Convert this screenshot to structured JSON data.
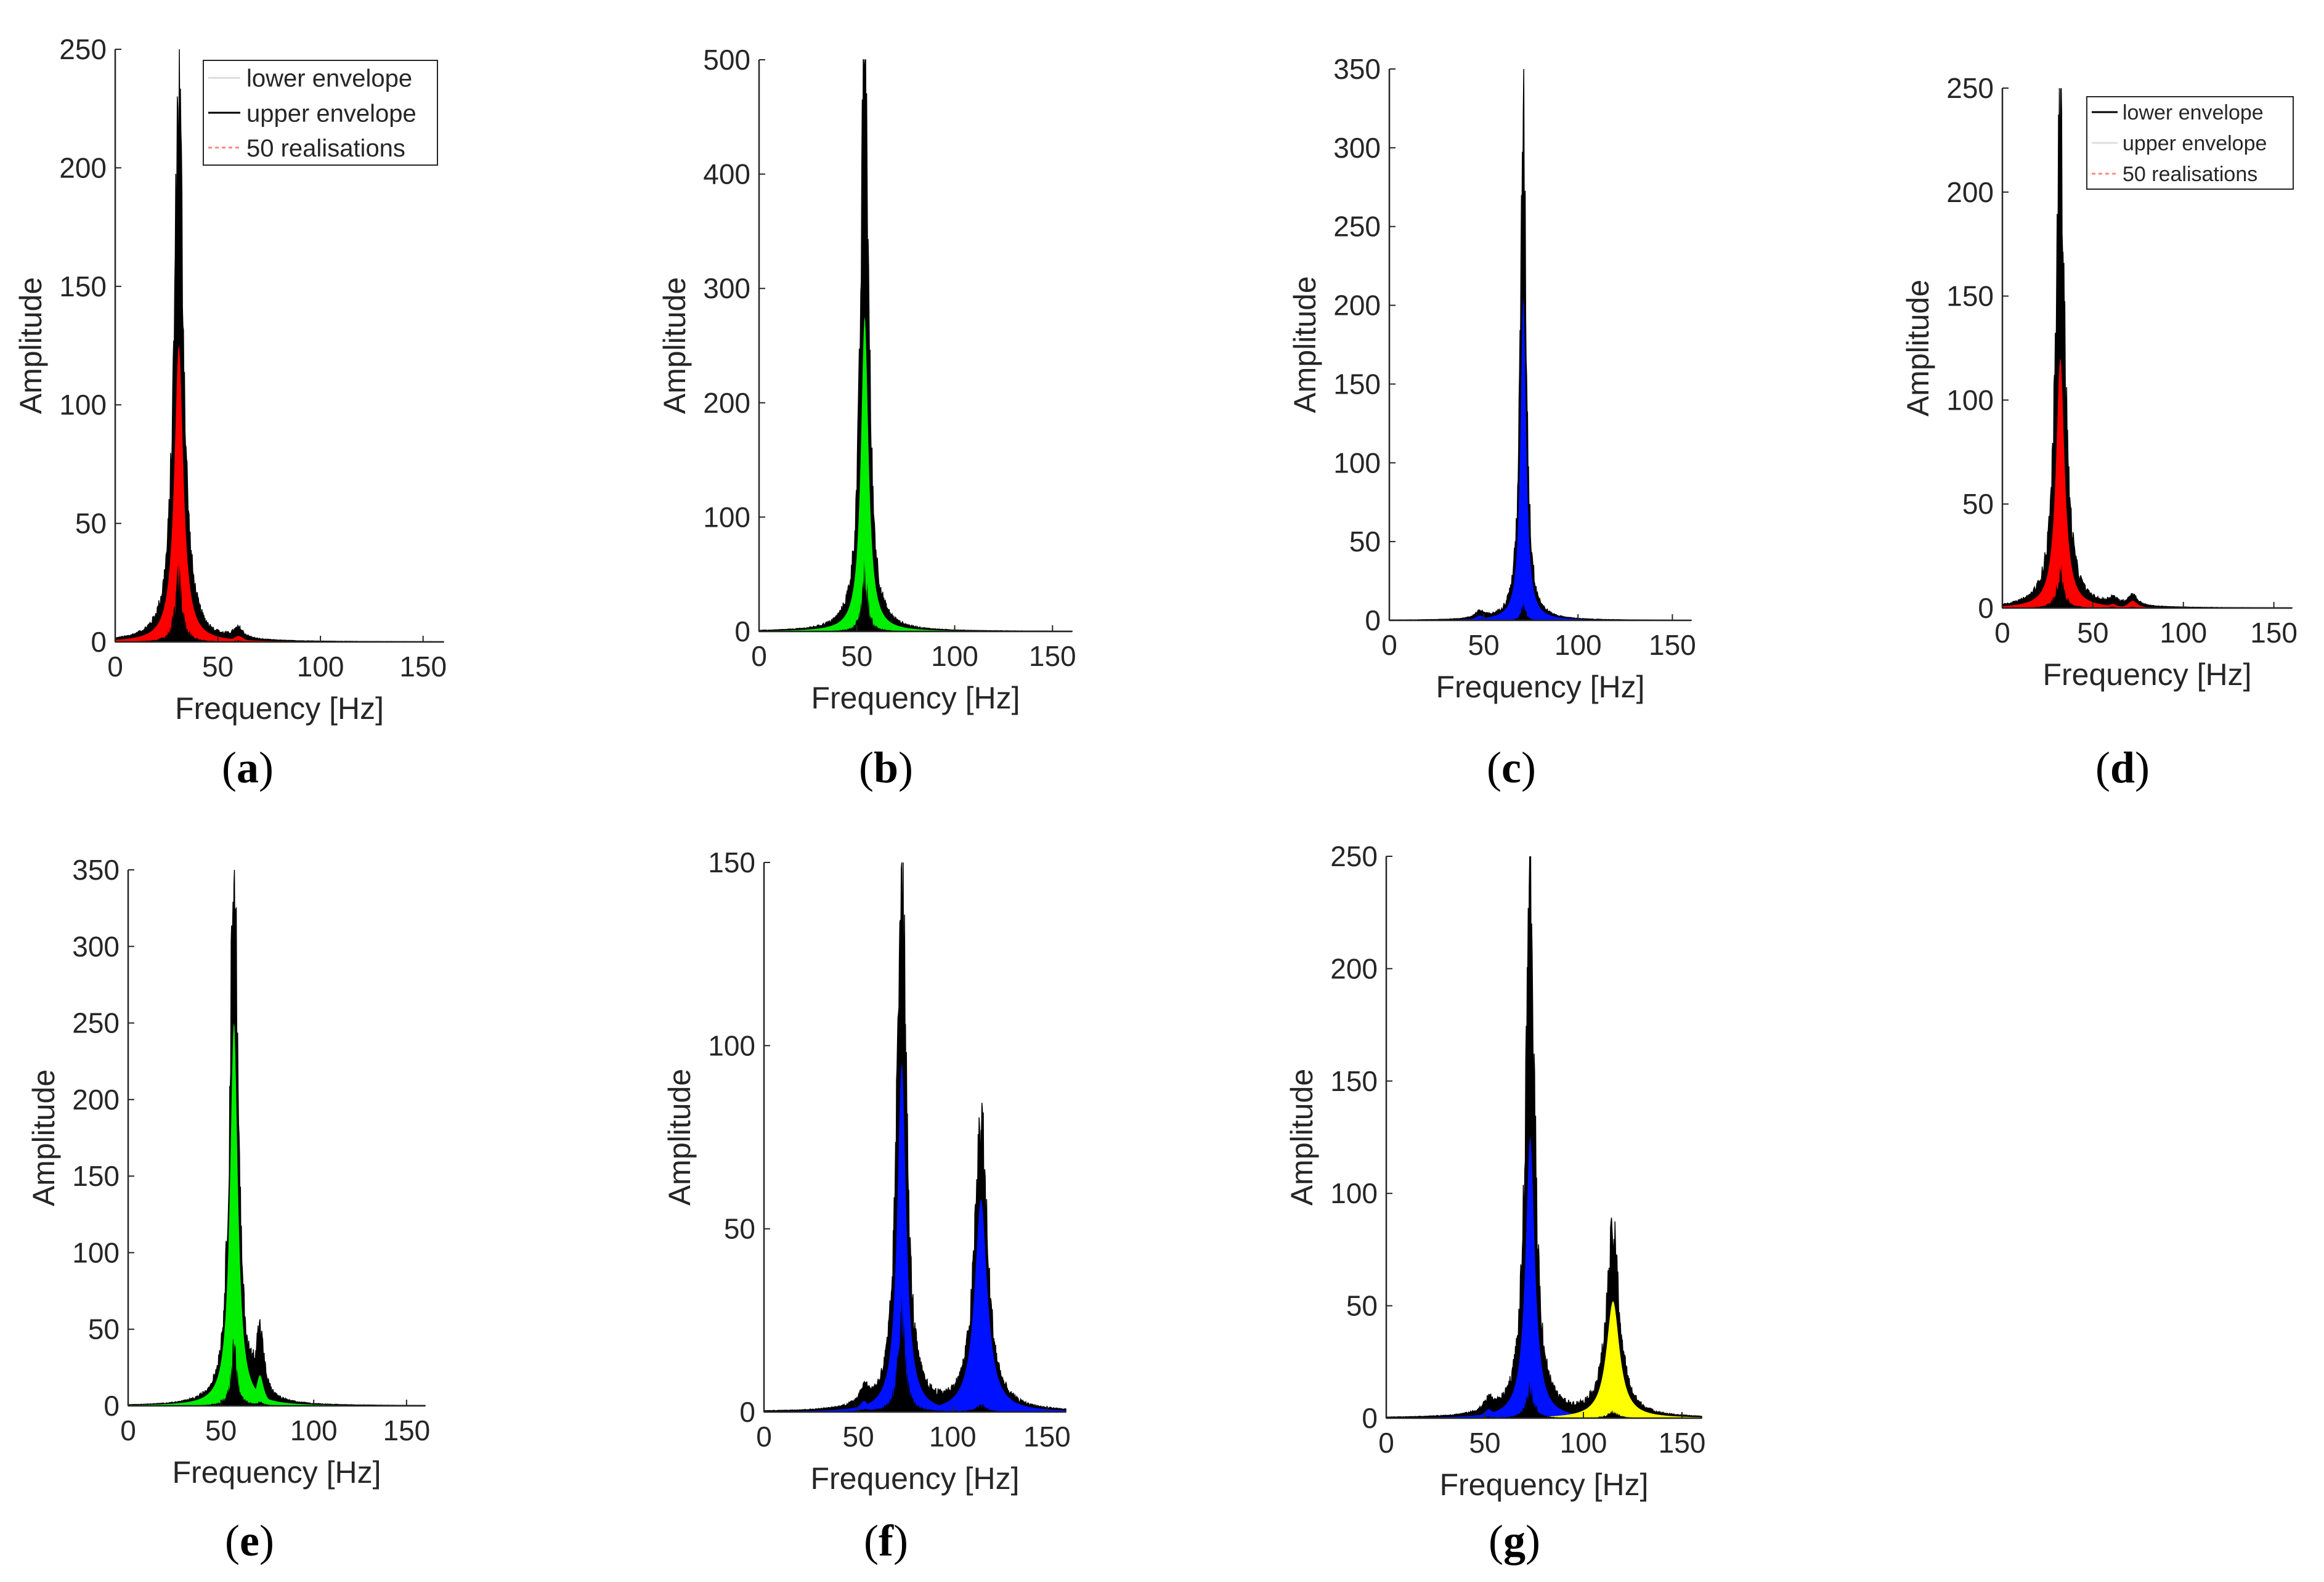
{
  "colors": {
    "envelope": "#000000",
    "axis": "#262626",
    "red": "#ff0000",
    "green": "#00ee00",
    "blue": "#0011ff",
    "yellow": "#ffff00"
  },
  "legend_entries": [
    "lower envelope",
    "upper envelope",
    "50 realisations"
  ],
  "chart_data": [
    {
      "id": "a",
      "type": "area",
      "panel_label": "a",
      "xlabel": "Frequency [Hz]",
      "ylabel": "Amplitude",
      "xlim": [
        0,
        160
      ],
      "ylim": [
        0,
        250
      ],
      "xticks": [
        0,
        50,
        100,
        150
      ],
      "yticks": [
        0,
        50,
        100,
        150,
        200,
        250
      ],
      "legend": {
        "position": "top-right",
        "entries": [
          "lower envelope",
          "upper envelope",
          "50 realisations"
        ]
      },
      "peaks": [
        {
          "center": 31,
          "width": 2.6,
          "upper": 220,
          "fill": 125,
          "lower": 30,
          "color": "red"
        },
        {
          "center": 60,
          "width": 3,
          "upper": 4,
          "fill": 2.5,
          "lower": 0.5,
          "color": "red"
        }
      ]
    },
    {
      "id": "b",
      "type": "area",
      "panel_label": "b",
      "xlabel": "Frequency [Hz]",
      "ylabel": "Amplitude",
      "xlim": [
        0,
        160
      ],
      "ylim": [
        0,
        500
      ],
      "xticks": [
        0,
        50,
        100,
        150
      ],
      "yticks": [
        0,
        100,
        200,
        300,
        400,
        500
      ],
      "peaks": [
        {
          "center": 54,
          "width": 2.3,
          "upper": 495,
          "fill": 275,
          "lower": 55,
          "color": "green"
        }
      ]
    },
    {
      "id": "c",
      "type": "area",
      "panel_label": "c",
      "xlabel": "Frequency [Hz]",
      "ylabel": "Amplitude",
      "xlim": [
        0,
        160
      ],
      "ylim": [
        0,
        350
      ],
      "xticks": [
        0,
        50,
        100,
        150
      ],
      "yticks": [
        0,
        50,
        100,
        150,
        200,
        250,
        300,
        350
      ],
      "peaks": [
        {
          "center": 71,
          "width": 1.8,
          "upper": 300,
          "fill": 205,
          "lower": 10,
          "color": "blue"
        },
        {
          "center": 48,
          "width": 3,
          "upper": 4,
          "fill": 3,
          "lower": 0.5,
          "color": "blue"
        }
      ]
    },
    {
      "id": "d",
      "type": "area",
      "panel_label": "d",
      "xlabel": "Frequency [Hz]",
      "ylabel": "Amplitude",
      "xlim": [
        0,
        160
      ],
      "ylim": [
        0,
        250
      ],
      "xticks": [
        0,
        50,
        100,
        150
      ],
      "yticks": [
        0,
        50,
        100,
        150,
        200,
        250
      ],
      "legend": {
        "position": "top-right",
        "entries": [
          "lower envelope",
          "upper envelope",
          "50 realisations"
        ]
      },
      "peaks": [
        {
          "center": 32,
          "width": 2.8,
          "upper": 225,
          "fill": 120,
          "lower": 20,
          "color": "red"
        },
        {
          "center": 72,
          "width": 3,
          "upper": 5,
          "fill": 3.5,
          "lower": 0.5,
          "color": "red"
        },
        {
          "center": 61,
          "width": 3,
          "upper": 3,
          "fill": 2,
          "lower": 0.5,
          "color": "red"
        }
      ]
    },
    {
      "id": "e",
      "type": "area",
      "panel_label": "e",
      "xlabel": "Frequency [Hz]",
      "ylabel": "Amplitude",
      "xlim": [
        0,
        160
      ],
      "ylim": [
        0,
        350
      ],
      "xticks": [
        0,
        50,
        100,
        150
      ],
      "yticks": [
        0,
        50,
        100,
        150,
        200,
        250,
        300,
        350
      ],
      "peaks": [
        {
          "center": 57,
          "width": 2.5,
          "upper": 340,
          "fill": 250,
          "lower": 40,
          "color": "green"
        },
        {
          "center": 71,
          "width": 2.5,
          "upper": 38,
          "fill": 20,
          "lower": 2,
          "color": "green"
        }
      ]
    },
    {
      "id": "f",
      "type": "area",
      "panel_label": "f",
      "xlabel": "Frequency [Hz]",
      "ylabel": "Amplitude",
      "xlim": [
        0,
        160
      ],
      "ylim": [
        0,
        150
      ],
      "xticks": [
        0,
        50,
        100,
        150
      ],
      "yticks": [
        0,
        50,
        100,
        150
      ],
      "peaks": [
        {
          "center": 73,
          "width": 2.8,
          "upper": 145,
          "fill": 95,
          "lower": 30,
          "color": "blue"
        },
        {
          "center": 115,
          "width": 4,
          "upper": 74,
          "fill": 58,
          "lower": 2,
          "color": "blue"
        },
        {
          "center": 53,
          "width": 3,
          "upper": 4,
          "fill": 3,
          "lower": 0.5,
          "color": "blue"
        }
      ]
    },
    {
      "id": "g",
      "type": "area",
      "panel_label": "g",
      "xlabel": "Frequency [Hz]",
      "ylabel": "Amplitude",
      "xlim": [
        0,
        160
      ],
      "ylim": [
        0,
        250
      ],
      "xticks": [
        0,
        50,
        100,
        150
      ],
      "yticks": [
        0,
        50,
        100,
        150,
        200,
        250
      ],
      "peaks": [
        {
          "center": 73,
          "width": 2.8,
          "upper": 215,
          "fill": 125,
          "lower": 15,
          "color": "blue"
        },
        {
          "center": 115,
          "width": 4,
          "upper": 75,
          "fill": 52,
          "lower": 3,
          "color": "yellow"
        },
        {
          "center": 52,
          "width": 3,
          "upper": 5,
          "fill": 4,
          "lower": 0.5,
          "color": "blue"
        }
      ]
    }
  ]
}
